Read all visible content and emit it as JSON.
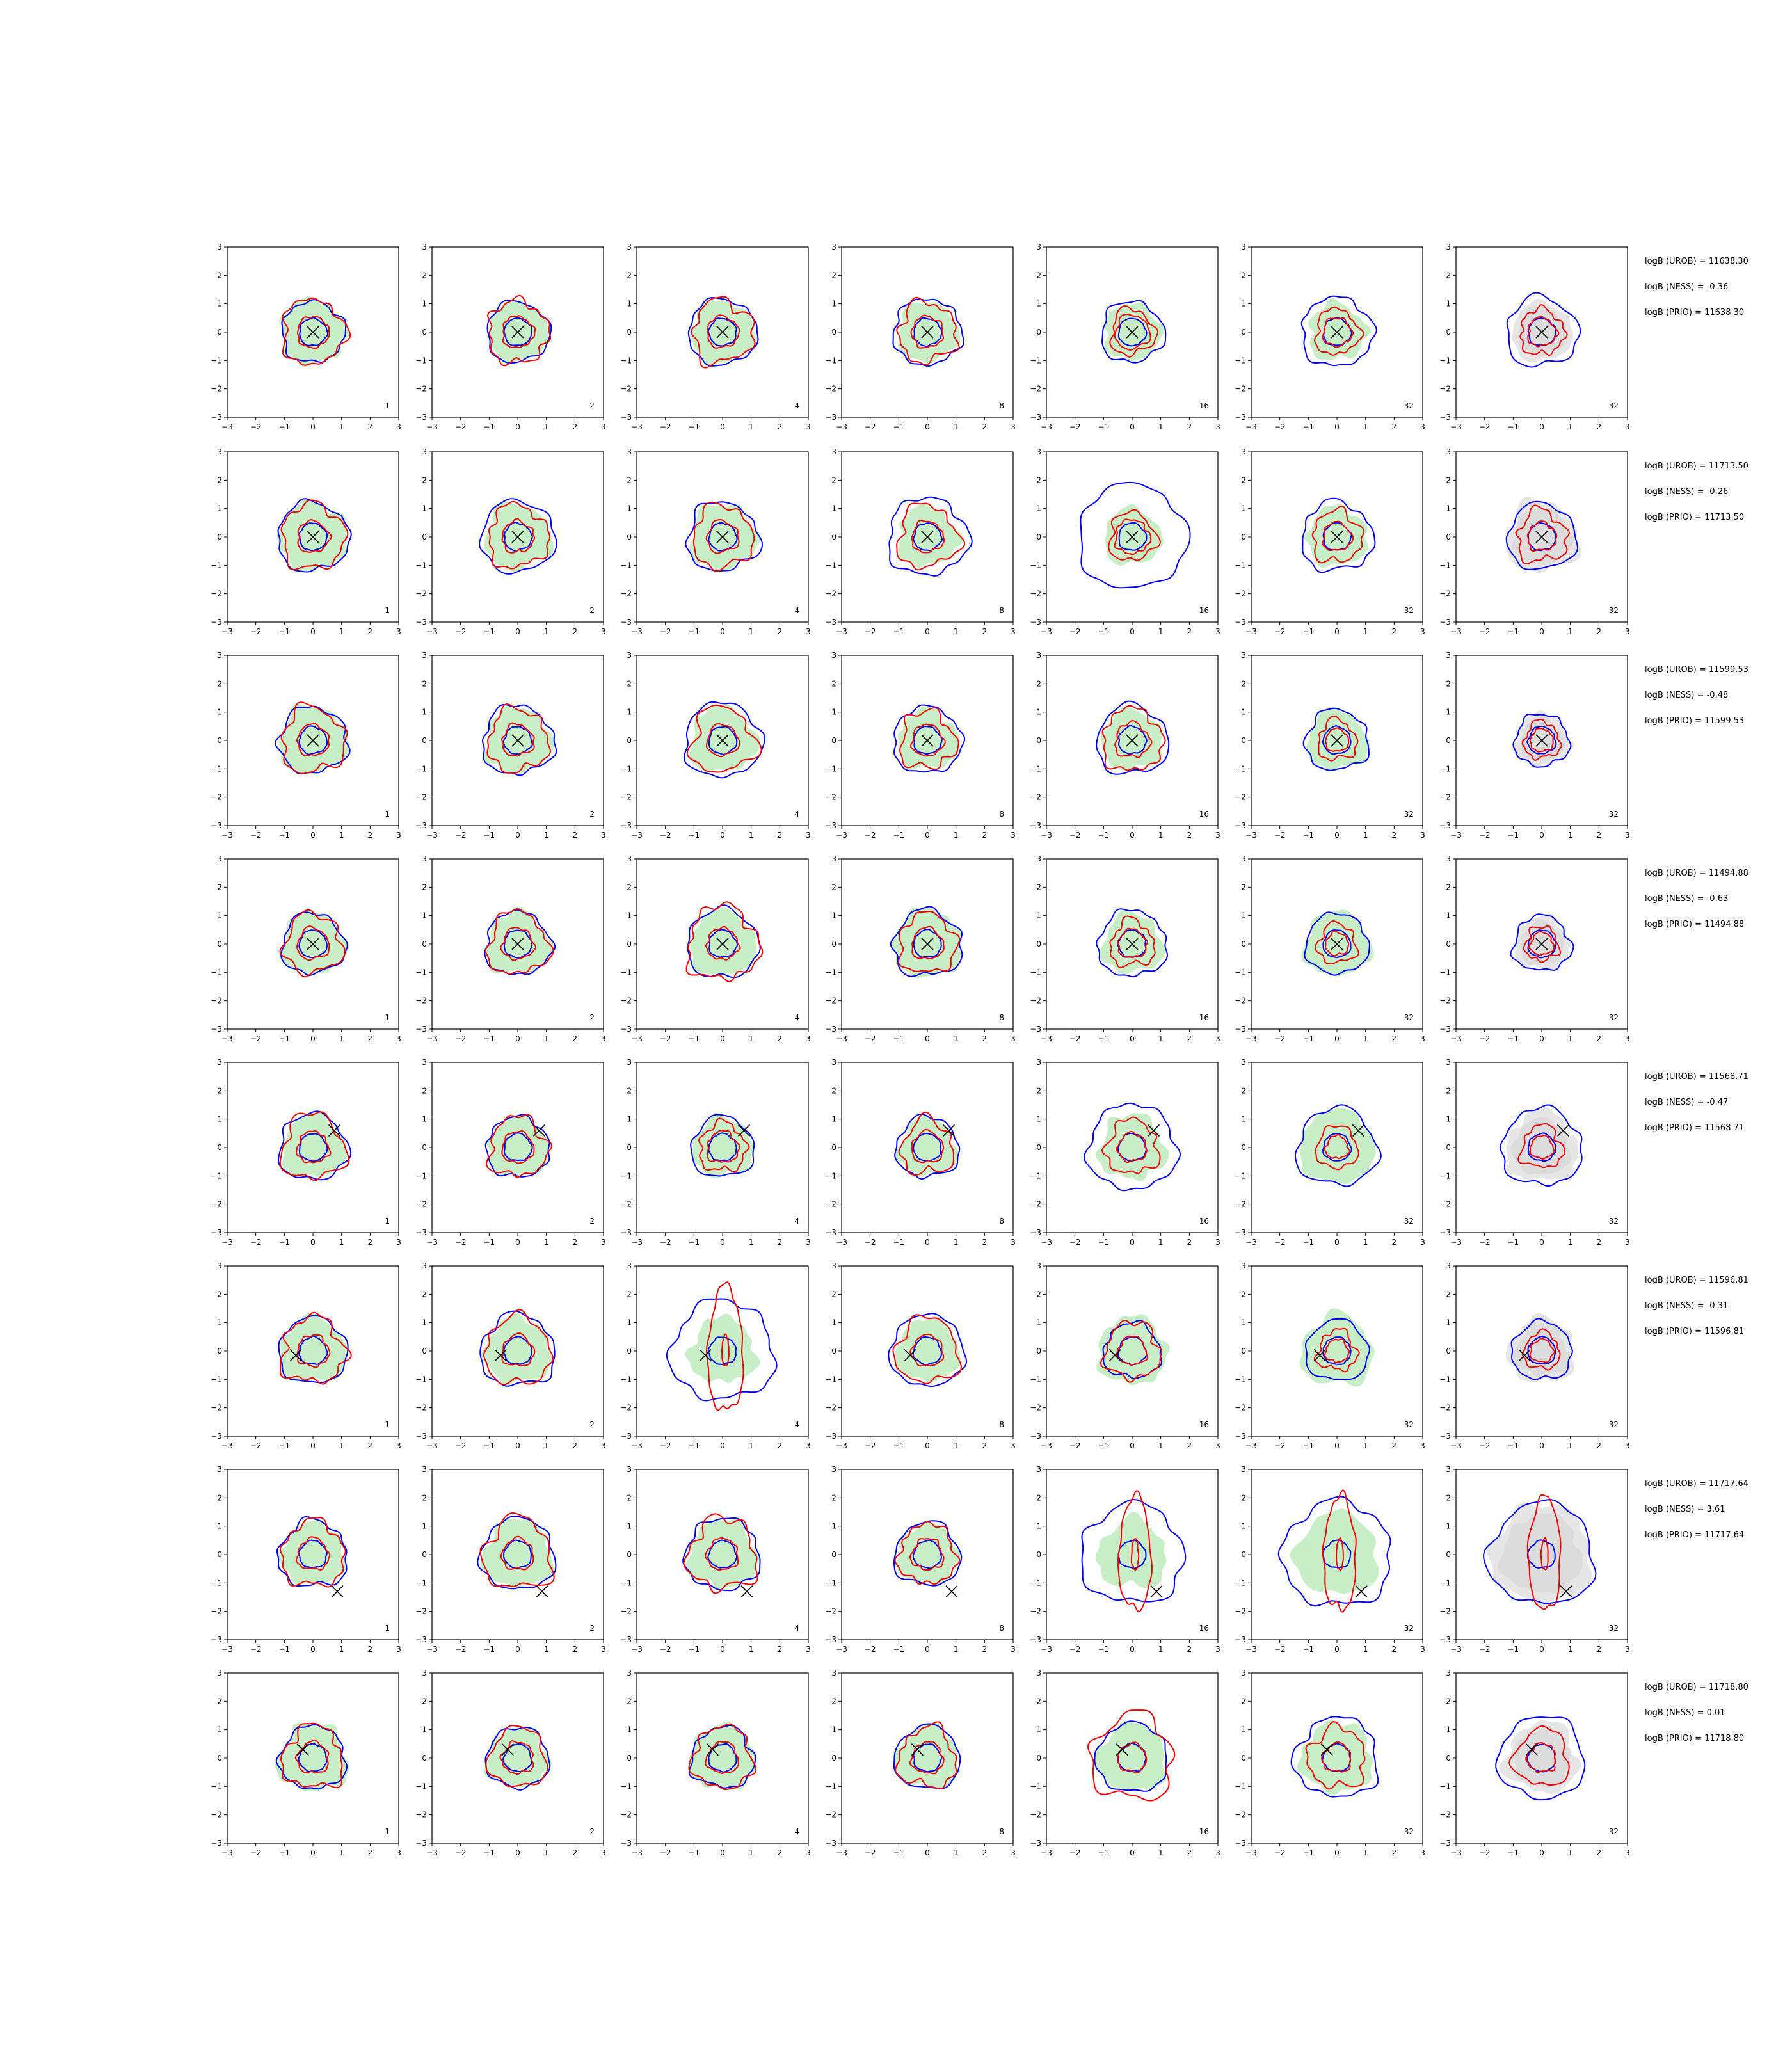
{
  "chart_data": {
    "type": "contour-grid",
    "xlim": [
      -3,
      3
    ],
    "ylim": [
      -3,
      3
    ],
    "ticks": [
      -3,
      -2,
      -1,
      0,
      1,
      2,
      3
    ],
    "grid": false,
    "columns": [
      "1",
      "2",
      "4",
      "8",
      "16",
      "32",
      "32"
    ],
    "column_shaded_fill": [
      "green",
      "green",
      "green",
      "green",
      "green",
      "green",
      "gray"
    ],
    "colors": {
      "fill_green": "#c8eec8",
      "fill_gray": "#e6e6e6",
      "blue": "#0000ee",
      "red": "#ee0000",
      "marker": "#000000"
    },
    "rows": [
      {
        "marker": [
          0,
          0
        ],
        "annotations": [
          "logB (UROB) = 11638.30",
          "logB (NESS) = -0.36",
          "logB (PRIO) = 11638.30"
        ],
        "outer_blue": [
          1.1,
          1.1,
          1.2,
          1.2,
          1.1,
          1.25,
          1.25
        ],
        "outer_red": [
          1.15,
          1.1,
          1.1,
          1.05,
          0.8,
          0.8,
          0.8
        ],
        "inner_red": [
          0.55,
          0.55,
          0.55,
          0.55,
          0.6,
          0.5,
          0.5
        ],
        "fill": [
          1.15,
          1.05,
          1.1,
          1.05,
          1.0,
          1.0,
          1.05
        ]
      },
      {
        "marker": [
          0,
          0
        ],
        "annotations": [
          "logB (UROB) = 11713.50",
          "logB (NESS) = -0.26",
          "logB (PRIO) = 11713.50"
        ],
        "outer_blue": [
          1.25,
          1.3,
          1.25,
          1.4,
          1.9,
          1.25,
          1.2
        ],
        "outer_red": [
          1.15,
          1.1,
          1.1,
          1.1,
          0.85,
          0.9,
          0.9
        ],
        "inner_red": [
          0.55,
          0.55,
          0.55,
          0.55,
          0.6,
          0.5,
          0.5
        ],
        "fill": [
          1.2,
          1.15,
          1.15,
          1.05,
          1.0,
          1.05,
          1.25
        ]
      },
      {
        "marker": [
          0,
          0
        ],
        "annotations": [
          "logB (UROB) = 11599.53",
          "logB (NESS) = -0.48",
          "logB (PRIO) = 11599.53"
        ],
        "outer_blue": [
          1.2,
          1.25,
          1.35,
          1.2,
          1.25,
          1.1,
          0.95
        ],
        "outer_red": [
          1.15,
          1.1,
          1.15,
          1.0,
          1.1,
          0.7,
          0.65
        ],
        "inner_red": [
          0.55,
          0.55,
          0.55,
          0.55,
          0.6,
          0.4,
          0.4
        ],
        "fill": [
          1.2,
          1.15,
          1.15,
          1.05,
          1.05,
          1.05,
          0.95
        ]
      },
      {
        "marker": [
          0,
          0
        ],
        "annotations": [
          "logB (UROB) = 11494.88",
          "logB (NESS) = -0.63",
          "logB (PRIO) = 11494.88"
        ],
        "outer_blue": [
          1.1,
          1.15,
          1.25,
          1.2,
          1.2,
          1.1,
          1.0
        ],
        "outer_red": [
          1.05,
          1.1,
          1.3,
          1.05,
          0.8,
          0.7,
          0.6
        ],
        "inner_red": [
          0.55,
          0.55,
          0.55,
          0.55,
          0.5,
          0.4,
          0.4
        ],
        "fill": [
          1.1,
          1.1,
          1.15,
          1.2,
          1.05,
          1.15,
          0.95
        ]
      },
      {
        "marker": [
          0.75,
          0.6
        ],
        "annotations": [
          "logB (UROB) = 11568.71",
          "logB (NESS) = -0.47",
          "logB (PRIO) = 11568.71"
        ],
        "outer_blue": [
          1.2,
          1.1,
          1.1,
          1.1,
          1.55,
          1.4,
          1.4
        ],
        "outer_red": [
          1.15,
          1.05,
          0.85,
          0.95,
          0.95,
          0.75,
          0.75
        ],
        "inner_red": [
          0.55,
          0.55,
          0.55,
          0.55,
          0.5,
          0.4,
          0.4
        ],
        "fill": [
          1.1,
          1.05,
          1.05,
          1.0,
          1.15,
          1.3,
          1.25
        ]
      },
      {
        "marker": [
          -0.6,
          -0.15
        ],
        "annotations": [
          "logB (UROB) = 11596.81",
          "logB (NESS) = -0.31",
          "logB (PRIO) = 11596.81"
        ],
        "outer_blue": [
          1.2,
          1.3,
          1.8,
          1.3,
          1.0,
          1.1,
          1.05
        ],
        "outer_red": [
          1.15,
          1.2,
          2.2,
          1.15,
          1.0,
          0.7,
          0.65
        ],
        "inner_red": [
          0.55,
          0.55,
          0.55,
          0.55,
          0.5,
          0.4,
          0.4
        ],
        "fill": [
          1.15,
          1.15,
          1.15,
          1.1,
          1.2,
          1.25,
          1.15
        ]
      },
      {
        "marker": [
          0.85,
          -1.3
        ],
        "annotations": [
          "logB (UROB) = 11717.64",
          "logB (NESS) = 3.61",
          "logB (PRIO) = 11717.64"
        ],
        "outer_blue": [
          1.2,
          1.3,
          1.3,
          1.15,
          1.8,
          1.9,
          1.85
        ],
        "outer_red": [
          1.15,
          1.25,
          1.25,
          1.05,
          2.0,
          2.0,
          2.0
        ],
        "inner_red": [
          0.55,
          0.55,
          0.55,
          0.55,
          0.6,
          0.6,
          0.6
        ],
        "fill": [
          1.1,
          1.2,
          1.2,
          1.05,
          1.2,
          1.45,
          1.75
        ]
      },
      {
        "marker": [
          -0.35,
          0.3
        ],
        "annotations": [
          "logB (UROB) = 11718.80",
          "logB (NESS) = 0.01",
          "logB (PRIO) = 11718.80"
        ],
        "outer_blue": [
          1.15,
          1.1,
          1.1,
          1.15,
          1.25,
          1.45,
          1.5
        ],
        "outer_red": [
          1.1,
          1.05,
          1.1,
          1.05,
          1.5,
          1.05,
          1.0
        ],
        "inner_red": [
          0.55,
          0.55,
          0.55,
          0.55,
          0.5,
          0.5,
          0.5
        ],
        "fill": [
          1.2,
          1.05,
          1.15,
          1.1,
          1.2,
          1.25,
          1.25
        ]
      }
    ]
  }
}
